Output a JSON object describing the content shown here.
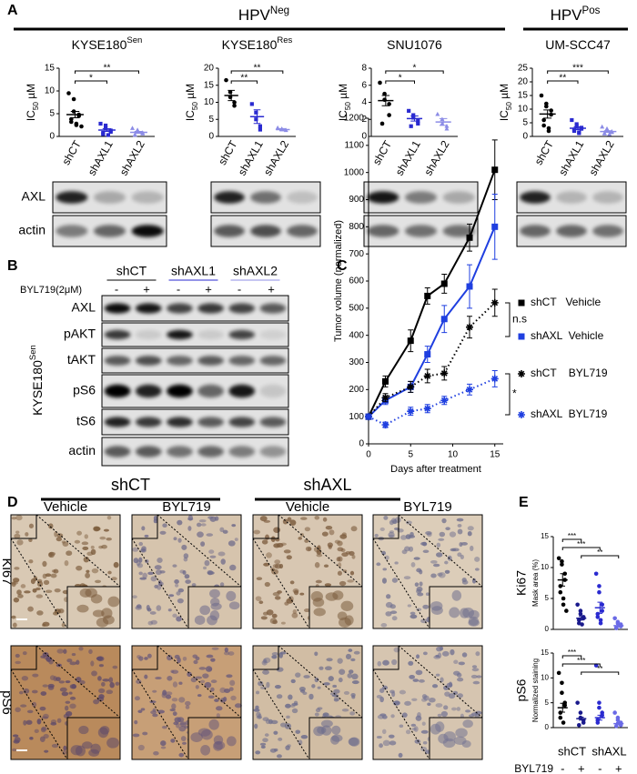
{
  "panel_labels": [
    "A",
    "B",
    "C",
    "D",
    "E"
  ],
  "panel_a": {
    "groups": [
      {
        "text": "HPV",
        "sup": "Neg"
      },
      {
        "text": "HPV",
        "sup": "Pos"
      }
    ],
    "y_label": {
      "text": "IC",
      "sub": "50",
      "rest": " µM"
    },
    "categories": [
      "shCT",
      "shAXL1",
      "shAXL2"
    ],
    "colors": [
      "#000000",
      "#2a2ad0",
      "#8c8ce6"
    ],
    "blot_rows": [
      "AXL",
      "actin"
    ],
    "plots": [
      {
        "title": {
          "text": "KYSE180",
          "sup": "Sen"
        },
        "title_color": "#000000",
        "ylim": [
          0,
          15
        ],
        "yticks": [
          0,
          5,
          10,
          15
        ],
        "groups": [
          {
            "mean": 4.8,
            "err": 0.7,
            "points": [
              9.5,
              8.2,
              5.5,
              4.8,
              4.5,
              3.8,
              3.2,
              2.8,
              2.5,
              2.2
            ]
          },
          {
            "mean": 1.4,
            "err": 0.3,
            "points": [
              2.8,
              2.4,
              1.8,
              1.3,
              1.0,
              0.8,
              0.5,
              0.3
            ]
          },
          {
            "mean": 0.9,
            "err": 0.2,
            "points": [
              1.8,
              1.4,
              1.0,
              0.8,
              0.6,
              0.4,
              0.3
            ]
          }
        ],
        "brackets": [
          {
            "from": 0,
            "to": 2,
            "label": "**"
          },
          {
            "from": 0,
            "to": 1,
            "label": "*"
          }
        ]
      },
      {
        "title": {
          "text": "KYSE180",
          "sup": "Res"
        },
        "title_color": "#d42020",
        "ylim": [
          0,
          20
        ],
        "yticks": [
          0,
          5,
          10,
          15,
          20
        ],
        "groups": [
          {
            "mean": 12,
            "err": 1.5,
            "points": [
              16.5,
              13,
              11.5,
              10,
              9
            ]
          },
          {
            "mean": 5.8,
            "err": 2,
            "points": [
              9.5,
              7,
              5,
              3,
              2
            ]
          },
          {
            "mean": 2,
            "err": 0.3,
            "points": [
              2.5,
              2.2,
              2,
              1.8
            ]
          }
        ],
        "brackets": [
          {
            "from": 0,
            "to": 2,
            "label": "**"
          },
          {
            "from": 0,
            "to": 1,
            "label": "**"
          }
        ]
      },
      {
        "title": {
          "text": "SNU1076"
        },
        "title_color": "#000000",
        "ylim": [
          0,
          8
        ],
        "yticks": [
          0,
          2,
          4,
          6,
          8
        ],
        "groups": [
          {
            "mean": 4.2,
            "err": 0.6,
            "points": [
              6.3,
              5,
              4.3,
              3.8,
              2.5,
              1.5
            ]
          },
          {
            "mean": 2.1,
            "err": 0.3,
            "points": [
              3,
              2.5,
              2.2,
              1.8,
              1.5,
              1.2
            ]
          },
          {
            "mean": 1.7,
            "err": 0.4,
            "points": [
              2.6,
              2,
              1.5,
              1.2,
              0.9
            ]
          }
        ],
        "brackets": [
          {
            "from": 0,
            "to": 2,
            "label": "*"
          },
          {
            "from": 0,
            "to": 1,
            "label": "*"
          }
        ]
      },
      {
        "title": {
          "text": "UM-SCC47"
        },
        "title_color": "#000000",
        "ylim": [
          0,
          25
        ],
        "yticks": [
          0,
          5,
          10,
          15,
          20,
          25
        ],
        "groups": [
          {
            "mean": 8.2,
            "err": 1.5,
            "points": [
              15,
              12,
              11,
              9.5,
              8,
              6,
              4,
              3,
              2
            ]
          },
          {
            "mean": 3,
            "err": 0.5,
            "points": [
              6,
              4.5,
              3.8,
              3.2,
              2.8,
              2.5,
              2,
              1.5,
              1.2
            ]
          },
          {
            "mean": 1.8,
            "err": 0.3,
            "points": [
              3.5,
              2.8,
              2.2,
              1.8,
              1.5,
              1.2,
              1,
              0.8
            ]
          }
        ],
        "brackets": [
          {
            "from": 0,
            "to": 2,
            "label": "***"
          },
          {
            "from": 0,
            "to": 1,
            "label": "**"
          }
        ]
      }
    ]
  },
  "panel_b": {
    "conditions": [
      {
        "name": "shCT",
        "color": "#000000"
      },
      {
        "name": "shAXL1",
        "color": "#2a2ad0"
      },
      {
        "name": "shAXL2",
        "color": "#8c8ce6"
      }
    ],
    "treatment": "BYL719(2μM)",
    "signs": [
      "-",
      "+",
      "-",
      "+",
      "-",
      "+"
    ],
    "rows": [
      "AXL",
      "pAKT",
      "tAKT",
      "pS6",
      "tS6",
      "actin"
    ],
    "side_label": {
      "text": "KYSE180",
      "sup": "Sen"
    }
  },
  "chart_data": {
    "type": "line",
    "x_label": "Days after treatment",
    "y_label": "Tumor volume (normalized)",
    "x": [
      0,
      2,
      5,
      7,
      9,
      12,
      15
    ],
    "xlim": [
      0,
      16
    ],
    "xticks": [
      0,
      5,
      10,
      15
    ],
    "ylim": [
      0,
      1200
    ],
    "yticks": [
      0,
      100,
      200,
      300,
      400,
      500,
      600,
      700,
      800,
      900,
      1000,
      1100,
      1200
    ],
    "series": [
      {
        "name": "shCT   Vehicle",
        "color": "#000000",
        "marker": "square",
        "dashed": false,
        "values": [
          100,
          230,
          380,
          545,
          590,
          760,
          1010
        ],
        "errors": [
          0,
          20,
          40,
          30,
          35,
          50,
          110
        ]
      },
      {
        "name": "shAXL  Vehicle",
        "color": "#1f3fe0",
        "marker": "square",
        "dashed": false,
        "values": [
          100,
          160,
          210,
          330,
          460,
          580,
          800
        ],
        "errors": [
          0,
          15,
          20,
          30,
          50,
          80,
          120
        ]
      },
      {
        "name": "shCT    BYL719",
        "color": "#000000",
        "marker": "star",
        "dashed": true,
        "values": [
          100,
          170,
          210,
          250,
          260,
          430,
          520
        ],
        "errors": [
          0,
          15,
          20,
          25,
          25,
          40,
          50
        ]
      },
      {
        "name": "shAXL  BYL719",
        "color": "#1f3fe0",
        "marker": "star",
        "dashed": true,
        "values": [
          100,
          70,
          120,
          130,
          160,
          200,
          240
        ],
        "errors": [
          0,
          10,
          15,
          15,
          15,
          20,
          30
        ]
      }
    ],
    "annotations": [
      "n.s",
      "*"
    ]
  },
  "panel_d": {
    "groups": [
      {
        "name": "shCT",
        "color": "#000000"
      },
      {
        "name": "shAXL",
        "color": "#2a2ad0"
      }
    ],
    "columns": [
      "Vehicle",
      "BYL719",
      "Vehicle",
      "BYL719"
    ],
    "rows": [
      "Ki67",
      "pS6"
    ]
  },
  "panel_e": {
    "colors": [
      "#000000",
      "#1a1a8c",
      "#2a2ad0",
      "#6a6ae6"
    ],
    "plots": [
      {
        "title": "Ki67",
        "y_label": "Mask area (%)",
        "ylim": [
          0,
          15
        ],
        "yticks": [
          0,
          5,
          10,
          15
        ],
        "groups": [
          {
            "mean": 8,
            "err": 1,
            "points": [
              11.5,
              11,
              10.5,
              9,
              8,
              7,
              6,
              5,
              4,
              3
            ]
          },
          {
            "mean": 1.8,
            "err": 0.3,
            "points": [
              4,
              3,
              2.5,
              2,
              1.8,
              1.5,
              1,
              0.8
            ]
          },
          {
            "mean": 3.5,
            "err": 0.9,
            "points": [
              9,
              7,
              6,
              4,
              3,
              2.5,
              2,
              1.5,
              1
            ]
          },
          {
            "mean": 0.6,
            "err": 0.2,
            "points": [
              1.8,
              1.2,
              1,
              0.8,
              0.5,
              0.3,
              0.2
            ]
          }
        ],
        "brackets": [
          {
            "from": 0,
            "to": 1,
            "label": "***"
          },
          {
            "from": 0,
            "to": 2,
            "label": "***"
          },
          {
            "from": 1,
            "to": 3,
            "label": "**"
          }
        ]
      },
      {
        "title": "pS6",
        "y_label": "Normalized staining",
        "ylim": [
          0,
          15
        ],
        "yticks": [
          0,
          5,
          10,
          15
        ],
        "groups": [
          {
            "mean": 4,
            "err": 0.9,
            "points": [
              11,
              9,
              7,
              5,
              4.5,
              3,
              2,
              1
            ]
          },
          {
            "mean": 1.8,
            "err": 0.3,
            "points": [
              5,
              3,
              2,
              1.5,
              1,
              0.5
            ]
          },
          {
            "mean": 2,
            "err": 0.5,
            "points": [
              12.5,
              5,
              4,
              3,
              2.5,
              1.5,
              1
            ]
          },
          {
            "mean": 0.8,
            "err": 0.2,
            "points": [
              3,
              2,
              1.5,
              1,
              0.5,
              0.3
            ]
          }
        ],
        "brackets": [
          {
            "from": 0,
            "to": 1,
            "label": "***"
          },
          {
            "from": 0,
            "to": 2,
            "label": "***"
          },
          {
            "from": 1,
            "to": 3,
            "label": "**"
          }
        ]
      }
    ],
    "groups": [
      {
        "name": "shCT",
        "color": "#000000"
      },
      {
        "name": "shAXL",
        "color": "#2a2ad0"
      }
    ],
    "treatment": "BYL719",
    "signs": [
      "-",
      "+",
      "-",
      "+"
    ]
  }
}
